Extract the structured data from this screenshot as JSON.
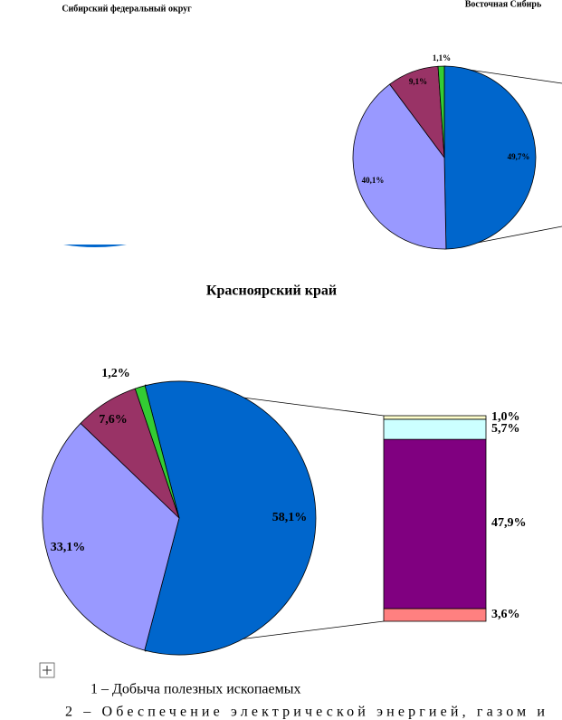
{
  "chart_data": [
    {
      "type": "pie",
      "title": "Сибирский федеральный округ"
    },
    {
      "type": "pie",
      "title": "Восточная Сибирь",
      "values": [
        49.7,
        40.1,
        9.1,
        1.1
      ],
      "value_labels": [
        "49,7%",
        "40,1%",
        "9,1%",
        "1,1%"
      ],
      "colors": [
        "#0066cc",
        "#9999ff",
        "#993366",
        "#33cc33"
      ]
    },
    {
      "type": "bar-of-pie",
      "title": "Красноярский край",
      "values": [
        58.1,
        33.1,
        7.6,
        1.2
      ],
      "value_labels": [
        "58,1%",
        "33,1%",
        "7,6%",
        "1,2%"
      ],
      "colors": [
        "#0066cc",
        "#9999ff",
        "#993366",
        "#33cc33"
      ],
      "bar_values": [
        3.6,
        47.9,
        5.7,
        1.0
      ],
      "bar_value_labels": [
        "3,6%",
        "47,9%",
        "5,7%",
        "1,0%"
      ],
      "bar_colors": [
        "#ff8080",
        "#800080",
        "#ccffff",
        "#ffffcc"
      ]
    }
  ],
  "text_lines": [
    "1 – Добыча полезных ископаемых",
    "2 – Обеспечение электрической энергией, газом и"
  ]
}
